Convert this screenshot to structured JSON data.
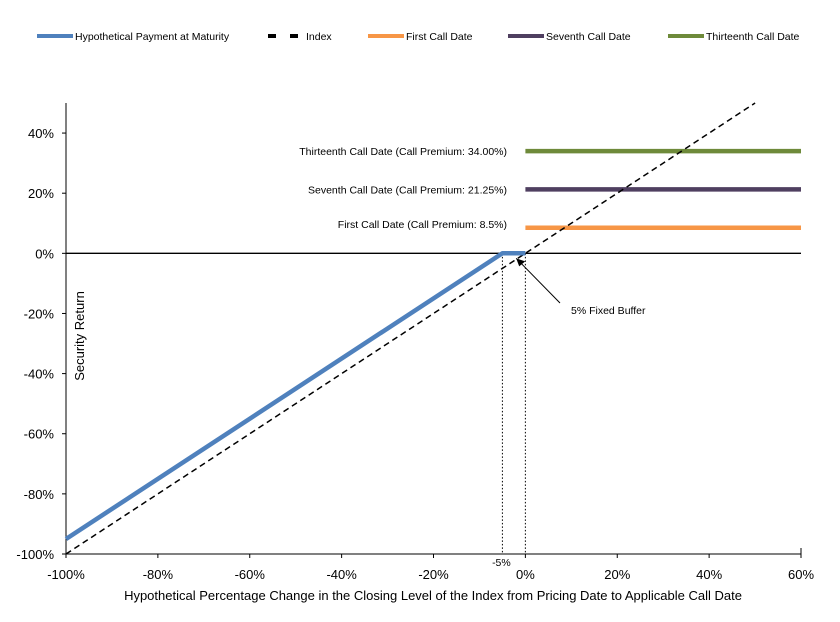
{
  "chart_data": {
    "type": "line",
    "xlabel": "Hypothetical Percentage Change in the Closing Level of the Index from Pricing Date to Applicable Call Date",
    "ylabel": "Security Return",
    "xlim": [
      -100,
      60
    ],
    "ylim": [
      -100,
      50
    ],
    "x_ticks": [
      -100,
      -80,
      -60,
      -40,
      -20,
      0,
      20,
      40,
      60
    ],
    "x_tick_labels": [
      "-100%",
      "-80%",
      "-60%",
      "-40%",
      "-20%",
      "0%",
      "20%",
      "40%",
      "60%"
    ],
    "y_ticks": [
      -100,
      -80,
      -60,
      -40,
      -20,
      0,
      20,
      40
    ],
    "y_tick_labels": [
      "-100%",
      "-80%",
      "-60%",
      "-40%",
      "-20%",
      "0%",
      "20%",
      "40%"
    ],
    "legend_position": "top",
    "series": [
      {
        "name": "Hypothetical Payment at Maturity",
        "color": "#4f81bd",
        "style": "solid",
        "x": [
          -100,
          -5,
          0
        ],
        "y": [
          -95,
          0,
          0
        ]
      },
      {
        "name": "Index",
        "color": "#000000",
        "style": "dashed",
        "x": [
          -100,
          50
        ],
        "y": [
          -100,
          50
        ]
      },
      {
        "name": "First Call Date",
        "color": "#f79646",
        "style": "solid",
        "x": [
          0,
          60
        ],
        "y": [
          8.5,
          8.5
        ]
      },
      {
        "name": "Seventh Call Date",
        "color": "#4f3f60",
        "style": "solid",
        "x": [
          0,
          60
        ],
        "y": [
          21.25,
          21.25
        ]
      },
      {
        "name": "Thirteenth Call Date",
        "color": "#6e8a3a",
        "style": "solid",
        "x": [
          0,
          60
        ],
        "y": [
          34,
          34
        ]
      }
    ],
    "annotations": {
      "first": "First Call Date (Call Premium: 8.5%)",
      "seventh": "Seventh  Call Date (Call Premium: 21.25%)",
      "thirteenth": "Thirteenth  Call Date (Call Premium: 34.00%)",
      "buffer": "5% Fixed Buffer",
      "buffer_marker": "-5%"
    }
  }
}
